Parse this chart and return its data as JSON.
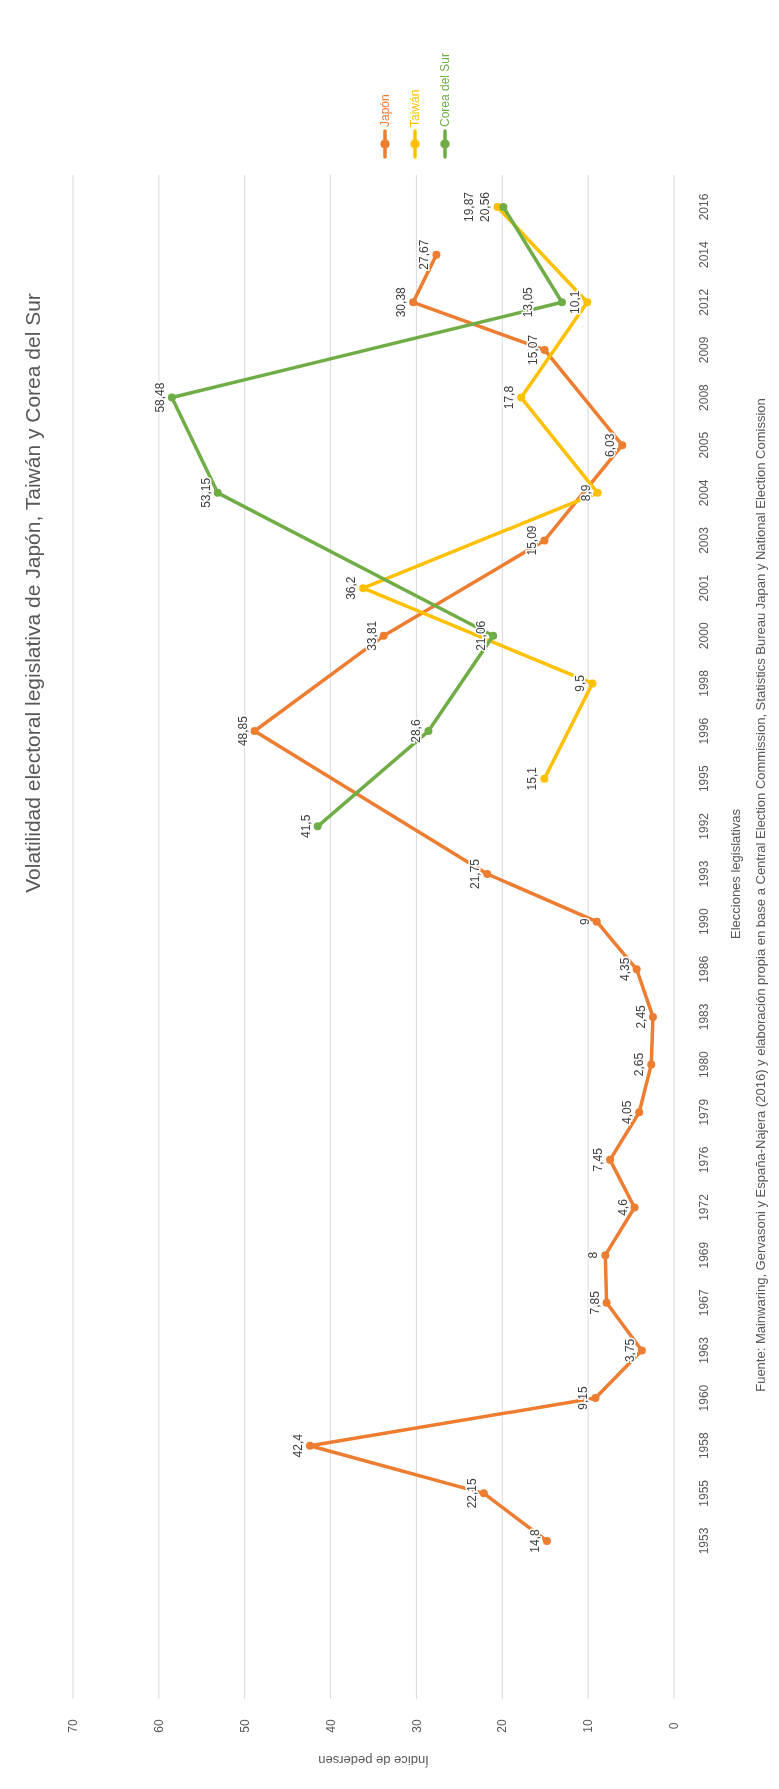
{
  "chart_data": {
    "type": "line",
    "orientation": "horizontal",
    "title": "Volatilidad electoral legislativa de Japón, Taiwán y Corea del Sur",
    "ylabel": "Elecciones legislativas",
    "xlabel": "Índice de pedersen",
    "categories": [
      "2016",
      "2014",
      "2012",
      "2009",
      "2008",
      "2005",
      "2004",
      "2003",
      "2001",
      "2000",
      "1998",
      "1996",
      "1995",
      "1992",
      "1993",
      "1990",
      "1986",
      "1983",
      "1980",
      "1979",
      "1976",
      "1972",
      "1969",
      "1967",
      "1963",
      "1960",
      "1958",
      "1955",
      "1953"
    ],
    "series": [
      {
        "name": "Japón",
        "color": "#ed7d31",
        "values": [
          null,
          27.67,
          30.38,
          15.07,
          null,
          6.03,
          null,
          15.09,
          null,
          33.81,
          null,
          48.85,
          null,
          null,
          21.75,
          9,
          4.35,
          2.45,
          2.65,
          4.05,
          7.45,
          4.6,
          8,
          7.85,
          3.75,
          9.15,
          42.4,
          22.15,
          14.8
        ],
        "value_labels": [
          null,
          "27,67",
          "30,38",
          "15,07",
          null,
          "6,03",
          null,
          "15,09",
          null,
          "33,81",
          null,
          "48,85",
          null,
          null,
          "21,75",
          "9",
          "4,35",
          "2,45",
          "2,65",
          "4,05",
          "7,45",
          "4,6",
          "8",
          "7,85",
          "3,75",
          "9,15",
          "42,4",
          "22,15",
          "14,8"
        ]
      },
      {
        "name": "Taiwán",
        "color": "#ffc000",
        "values": [
          20.56,
          null,
          10.1,
          null,
          17.8,
          null,
          8.9,
          null,
          36.2,
          null,
          9.5,
          null,
          15.1,
          null,
          null,
          null,
          null,
          null,
          null,
          null,
          null,
          null,
          null,
          null,
          null,
          null,
          null,
          null,
          null
        ],
        "value_labels": [
          "20,56",
          null,
          "10,1",
          null,
          "17,8",
          null,
          "8,9",
          null,
          "36,2",
          null,
          "9,5",
          null,
          "15,1",
          null,
          null,
          null,
          null,
          null,
          null,
          null,
          null,
          null,
          null,
          null,
          null,
          null,
          null,
          null,
          null
        ]
      },
      {
        "name": "Corea del Sur",
        "color": "#70ad47",
        "values": [
          19.87,
          null,
          13.05,
          null,
          58.48,
          null,
          53.15,
          null,
          null,
          21.06,
          null,
          28.6,
          null,
          41.5,
          null,
          null,
          null,
          null,
          null,
          null,
          null,
          null,
          null,
          null,
          null,
          null,
          null,
          null,
          null
        ],
        "value_labels": [
          "19,87",
          null,
          "13,05",
          null,
          "58,48",
          null,
          "53,15",
          null,
          null,
          "21,06",
          null,
          "28,6",
          null,
          "41,5",
          null,
          null,
          null,
          null,
          null,
          null,
          null,
          null,
          null,
          null,
          null,
          null,
          null,
          null,
          null
        ]
      }
    ],
    "xlim": [
      70,
      0
    ],
    "xticks": [
      70,
      60,
      50,
      40,
      30,
      20,
      10,
      0
    ],
    "grid": "x",
    "legend": "top",
    "marker": "circle",
    "line_style": "solid",
    "annotations": [
      "Fuente: Mainwaring, Gervasoni y España-Najera (2016) y elaboración propia en base a Central Election Commission, Statistics Bureau Japan y National Election Comission"
    ]
  }
}
